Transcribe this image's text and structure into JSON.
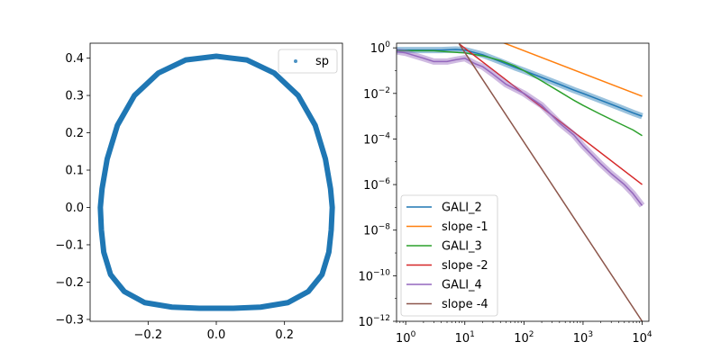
{
  "chart_data": [
    {
      "type": "scatter",
      "xlim": [
        -0.37,
        0.37
      ],
      "ylim": [
        -0.305,
        0.44
      ],
      "xticks": [
        -0.2,
        0.0,
        0.2
      ],
      "xtick_labels": [
        "−0.2",
        "0.0",
        "0.2"
      ],
      "yticks": [
        -0.3,
        -0.2,
        -0.1,
        0.0,
        0.1,
        0.2,
        0.3,
        0.4
      ],
      "ytick_labels": [
        "−0.3",
        "−0.2",
        "−0.1",
        "0.0",
        "0.1",
        "0.2",
        "0.3",
        "0.4"
      ],
      "legend": {
        "position": "top-right",
        "entries": [
          {
            "label": "sp",
            "color": "#1f77b4"
          }
        ]
      },
      "series": [
        {
          "name": "sp",
          "color": "#1f77b4",
          "x": [
            0.0,
            0.09,
            0.17,
            0.24,
            0.29,
            0.32,
            0.335,
            0.34,
            0.337,
            0.33,
            0.31,
            0.27,
            0.21,
            0.13,
            0.05,
            0.0,
            -0.05,
            -0.13,
            -0.21,
            -0.27,
            -0.31,
            -0.33,
            -0.337,
            -0.34,
            -0.335,
            -0.32,
            -0.29,
            -0.24,
            -0.17,
            -0.09
          ],
          "y": [
            0.405,
            0.395,
            0.36,
            0.3,
            0.22,
            0.13,
            0.05,
            0.0,
            -0.06,
            -0.12,
            -0.18,
            -0.225,
            -0.255,
            -0.267,
            -0.27,
            -0.27,
            -0.27,
            -0.267,
            -0.255,
            -0.225,
            -0.18,
            -0.12,
            -0.06,
            0.0,
            0.05,
            0.13,
            0.22,
            0.3,
            0.36,
            0.395
          ]
        }
      ]
    },
    {
      "type": "line",
      "xscale": "log",
      "yscale": "log",
      "xlim": [
        0.7,
        13000
      ],
      "ylim": [
        1e-12,
        1.6
      ],
      "xticks": [
        1,
        10,
        100,
        1000,
        10000
      ],
      "xtick_labels": [
        {
          "base": "10",
          "exp": "0"
        },
        {
          "base": "10",
          "exp": "1"
        },
        {
          "base": "10",
          "exp": "2"
        },
        {
          "base": "10",
          "exp": "3"
        },
        {
          "base": "10",
          "exp": "4"
        }
      ],
      "yticks": [
        1e-12,
        1e-10,
        1e-08,
        1e-06,
        0.0001,
        0.01,
        1
      ],
      "ytick_labels": [
        {
          "base": "10",
          "exp": "−12"
        },
        {
          "base": "10",
          "exp": "−10"
        },
        {
          "base": "10",
          "exp": "−8"
        },
        {
          "base": "10",
          "exp": "−6"
        },
        {
          "base": "10",
          "exp": "−4"
        },
        {
          "base": "10",
          "exp": "−2"
        },
        {
          "base": "10",
          "exp": "0"
        }
      ],
      "legend": {
        "position": "lower-left"
      },
      "series": [
        {
          "name": "GALI_2",
          "color": "#1f77b4",
          "x": [
            0.7,
            1,
            2,
            4,
            7,
            10,
            20,
            40,
            70,
            100,
            200,
            400,
            700,
            1000,
            2000,
            4000,
            7000,
            10000
          ],
          "y": [
            0.8,
            0.8,
            0.8,
            0.8,
            0.85,
            0.8,
            0.5,
            0.25,
            0.14,
            0.1,
            0.05,
            0.025,
            0.014,
            0.01,
            0.005,
            0.0025,
            0.0014,
            0.001
          ],
          "band": true
        },
        {
          "name": "slope -1",
          "color": "#ff7f0e",
          "x": [
            25,
            10000
          ],
          "y": [
            3.0,
            0.0075
          ]
        },
        {
          "name": "GALI_3",
          "color": "#2ca02c",
          "x": [
            0.7,
            1,
            3,
            6,
            10,
            20,
            40,
            70,
            100,
            200,
            400,
            700,
            1000,
            2000,
            4000,
            7000,
            10000
          ],
          "y": [
            0.75,
            0.75,
            0.75,
            0.65,
            0.6,
            0.45,
            0.28,
            0.16,
            0.1,
            0.035,
            0.012,
            0.005,
            0.003,
            0.0012,
            0.0005,
            0.00025,
            0.00014
          ]
        },
        {
          "name": "slope -2",
          "color": "#d62728",
          "x": [
            8,
            10000
          ],
          "y": [
            1.5,
            1e-06
          ]
        },
        {
          "name": "GALI_4",
          "color": "#9467bd",
          "x": [
            0.7,
            1,
            2,
            3,
            5,
            7,
            10,
            15,
            20,
            30,
            50,
            100,
            200,
            400,
            700,
            1000,
            2000,
            3000,
            5000,
            7000,
            10000
          ],
          "y": [
            0.7,
            0.6,
            0.35,
            0.25,
            0.25,
            0.3,
            0.35,
            0.2,
            0.15,
            0.07,
            0.025,
            0.01,
            0.003,
            0.0005,
            0.00015,
            5e-05,
            8e-06,
            3e-06,
            1e-06,
            4e-07,
            1.2e-07
          ],
          "band": true
        },
        {
          "name": "slope -4",
          "color": "#8c564b",
          "x": [
            8,
            10000
          ],
          "y": [
            1.5,
            1e-12
          ]
        }
      ]
    }
  ]
}
